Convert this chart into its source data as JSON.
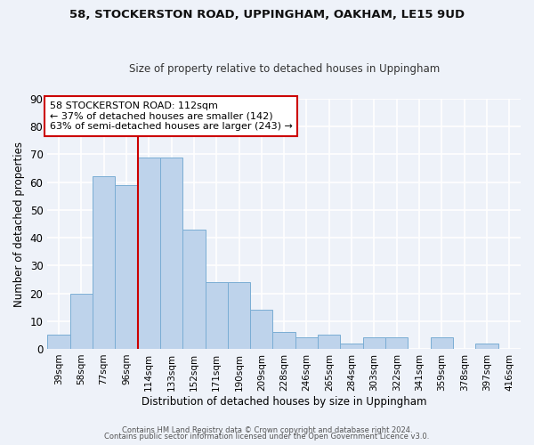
{
  "title1": "58, STOCKERSTON ROAD, UPPINGHAM, OAKHAM, LE15 9UD",
  "title2": "Size of property relative to detached houses in Uppingham",
  "xlabel": "Distribution of detached houses by size in Uppingham",
  "ylabel": "Number of detached properties",
  "categories": [
    "39sqm",
    "58sqm",
    "77sqm",
    "96sqm",
    "114sqm",
    "133sqm",
    "152sqm",
    "171sqm",
    "190sqm",
    "209sqm",
    "228sqm",
    "246sqm",
    "265sqm",
    "284sqm",
    "303sqm",
    "322sqm",
    "341sqm",
    "359sqm",
    "378sqm",
    "397sqm",
    "416sqm"
  ],
  "values": [
    5,
    20,
    62,
    59,
    69,
    69,
    43,
    24,
    24,
    14,
    6,
    4,
    5,
    2,
    4,
    4,
    0,
    4,
    0,
    2,
    0
  ],
  "bar_color": "#bed3eb",
  "bar_edge_color": "#7aadd4",
  "background_color": "#eef2f9",
  "grid_color": "#ffffff",
  "vline_x": 3.5,
  "vline_color": "#cc0000",
  "ylim": [
    0,
    90
  ],
  "yticks": [
    0,
    10,
    20,
    30,
    40,
    50,
    60,
    70,
    80,
    90
  ],
  "annotation_title": "58 STOCKERSTON ROAD: 112sqm",
  "annotation_line1": "← 37% of detached houses are smaller (142)",
  "annotation_line2": "63% of semi-detached houses are larger (243) →",
  "annotation_box_color": "#ffffff",
  "annotation_box_edge": "#cc0000",
  "footer1": "Contains HM Land Registry data © Crown copyright and database right 2024.",
  "footer2": "Contains public sector information licensed under the Open Government Licence v3.0."
}
